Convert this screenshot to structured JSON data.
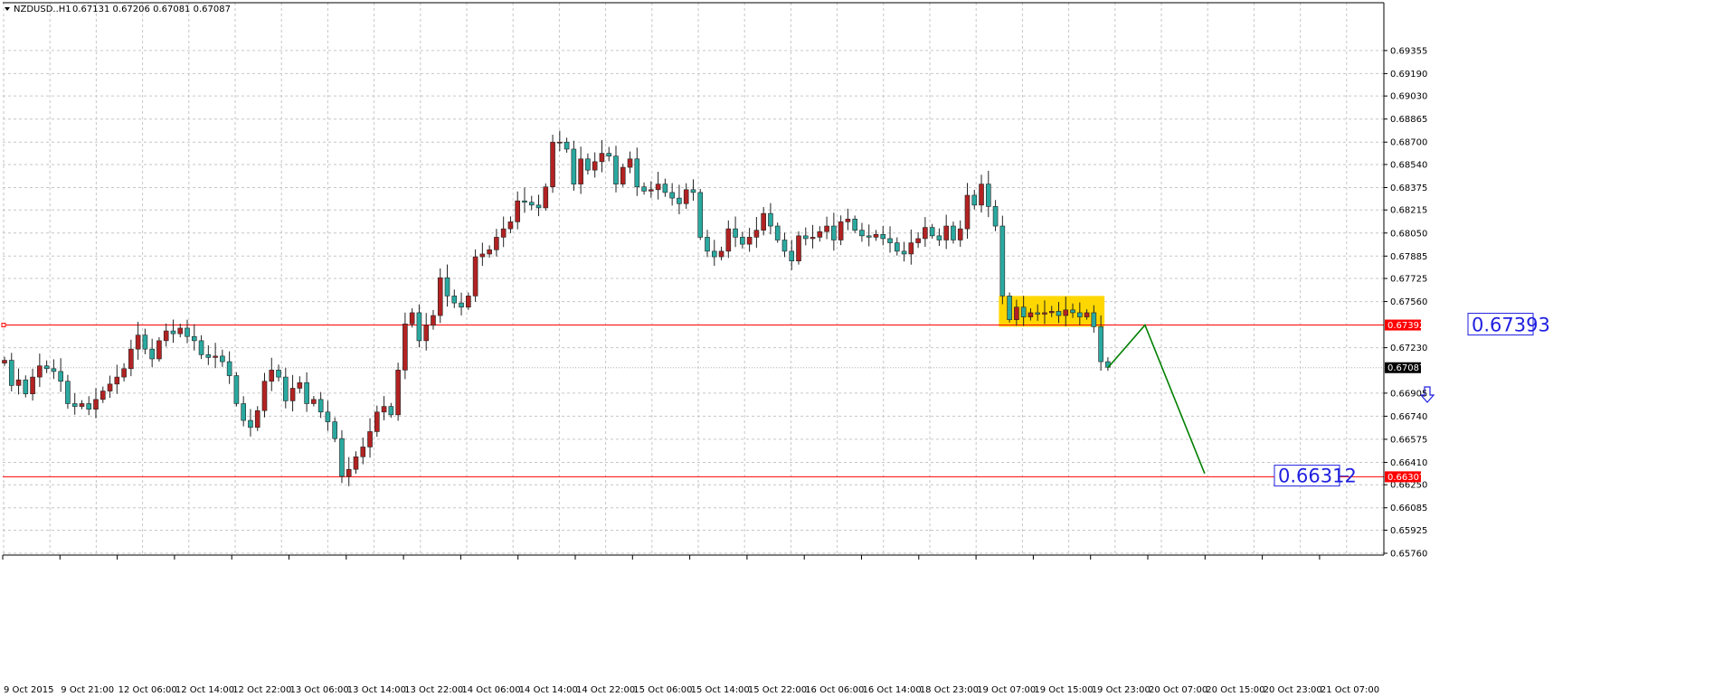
{
  "header": {
    "symbol_label": "NZDUSD..H1",
    "ohlc": "0.67131 0.67206 0.67081 0.67087"
  },
  "chart_data": {
    "type": "candlestick",
    "symbol": "NZDUSD..H1",
    "ylim": [
      0.6576,
      0.696
    ],
    "grid": true,
    "y_ticks": [
      "0.69355",
      "0.69190",
      "0.69030",
      "0.68865",
      "0.68700",
      "0.68540",
      "0.68375",
      "0.68215",
      "0.68050",
      "0.67885",
      "0.67725",
      "0.67560",
      "0.67230",
      "0.66905",
      "0.66740",
      "0.66575",
      "0.66410",
      "0.66250",
      "0.66085",
      "0.65925",
      "0.65760"
    ],
    "x_ticks": [
      "9 Oct 2015",
      "9 Oct 21:00",
      "12 Oct 06:00",
      "12 Oct 14:00",
      "12 Oct 22:00",
      "13 Oct 06:00",
      "13 Oct 14:00",
      "13 Oct 22:00",
      "14 Oct 06:00",
      "14 Oct 14:00",
      "14 Oct 22:00",
      "15 Oct 06:00",
      "15 Oct 14:00",
      "15 Oct 22:00",
      "16 Oct 06:00",
      "16 Oct 14:00",
      "18 Oct 23:00",
      "19 Oct 07:00",
      "19 Oct 15:00",
      "19 Oct 23:00",
      "20 Oct 07:00",
      "20 Oct 15:00",
      "20 Oct 23:00",
      "21 Oct 07:00"
    ],
    "closes": [
      0.6714,
      0.6696,
      0.67,
      0.669,
      0.6702,
      0.671,
      0.6708,
      0.6706,
      0.6699,
      0.6683,
      0.6681,
      0.6683,
      0.6679,
      0.6686,
      0.6692,
      0.6697,
      0.6702,
      0.6708,
      0.6722,
      0.6732,
      0.6722,
      0.6715,
      0.6728,
      0.6735,
      0.6733,
      0.6737,
      0.6731,
      0.6728,
      0.6718,
      0.6716,
      0.6717,
      0.6713,
      0.6703,
      0.6683,
      0.6671,
      0.6666,
      0.6678,
      0.6699,
      0.6707,
      0.6702,
      0.6685,
      0.6694,
      0.6698,
      0.6683,
      0.6686,
      0.6677,
      0.667,
      0.6658,
      0.6631,
      0.6636,
      0.6645,
      0.6652,
      0.6663,
      0.6677,
      0.6681,
      0.6675,
      0.6707,
      0.674,
      0.6748,
      0.6728,
      0.6739,
      0.6746,
      0.6773,
      0.676,
      0.6755,
      0.6752,
      0.676,
      0.6788,
      0.679,
      0.6793,
      0.6802,
      0.6808,
      0.6813,
      0.6828,
      0.6827,
      0.6825,
      0.6823,
      0.6838,
      0.687,
      0.687,
      0.6865,
      0.684,
      0.6858,
      0.685,
      0.6856,
      0.6862,
      0.686,
      0.684,
      0.6852,
      0.6858,
      0.6838,
      0.6835,
      0.6836,
      0.684,
      0.6834,
      0.683,
      0.6826,
      0.6836,
      0.6834,
      0.6802,
      0.6792,
      0.6788,
      0.6792,
      0.6808,
      0.6802,
      0.6797,
      0.6802,
      0.6807,
      0.6819,
      0.681,
      0.68,
      0.6792,
      0.6785,
      0.6803,
      0.6801,
      0.6802,
      0.6806,
      0.681,
      0.68,
      0.6813,
      0.6815,
      0.6807,
      0.6803,
      0.6802,
      0.6804,
      0.6801,
      0.6798,
      0.6792,
      0.679,
      0.6798,
      0.6801,
      0.6809,
      0.6803,
      0.68,
      0.681,
      0.68,
      0.6808,
      0.6832,
      0.6825,
      0.684,
      0.6824,
      0.681,
      0.676,
      0.6743,
      0.6752,
      0.6745,
      0.6748,
      0.6747,
      0.6748,
      0.6749,
      0.6746,
      0.675,
      0.6748,
      0.6745,
      0.6748,
      0.6738,
      0.6713,
      0.6709
    ],
    "horizontal_lines": [
      {
        "price_label": "0.67392",
        "color": "#ff0000"
      },
      {
        "price_label": "0.66307",
        "color": "#ff0000"
      }
    ],
    "current_price": "0.67087",
    "annotations": [
      {
        "text": "0.67393"
      },
      {
        "text": "0.66312"
      }
    ],
    "consolidation_zone": {
      "color": "#ffd700"
    },
    "projection": {
      "color": "#008000"
    },
    "bull_color": "#b22222",
    "bear_color": "#2aa9a0"
  }
}
